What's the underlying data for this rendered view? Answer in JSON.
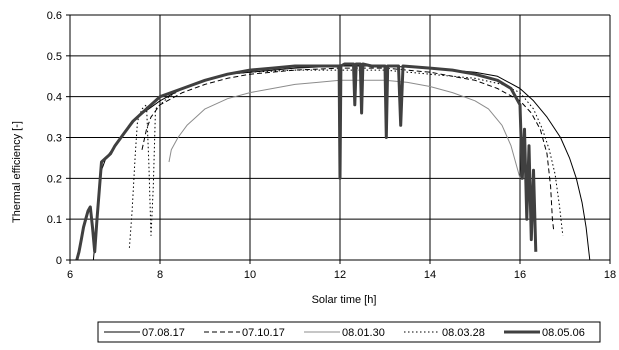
{
  "chart_data": {
    "type": "line",
    "title": "",
    "xlabel": "Solar time [h]",
    "ylabel": "Thermal efficiency [-]",
    "xlim": [
      6,
      18
    ],
    "ylim": [
      0,
      0.6
    ],
    "xticks": [
      6,
      8,
      10,
      12,
      14,
      16,
      18
    ],
    "yticks": [
      0,
      0.1,
      0.2,
      0.3,
      0.4,
      0.5,
      0.6
    ],
    "grid": true,
    "legend_position": "bottom",
    "series": [
      {
        "name": "07.08.17",
        "color": "#000000",
        "dash": "solid",
        "points": [
          [
            6.52,
            0
          ],
          [
            6.56,
            0.05
          ],
          [
            6.6,
            0.1
          ],
          [
            6.7,
            0.22
          ],
          [
            6.8,
            0.25
          ],
          [
            7.0,
            0.28
          ],
          [
            7.2,
            0.31
          ],
          [
            7.5,
            0.35
          ],
          [
            8.0,
            0.39
          ],
          [
            8.5,
            0.42
          ],
          [
            9.0,
            0.44
          ],
          [
            9.5,
            0.455
          ],
          [
            10.0,
            0.46
          ],
          [
            11.0,
            0.47
          ],
          [
            12.0,
            0.475
          ],
          [
            13.0,
            0.475
          ],
          [
            14.0,
            0.47
          ],
          [
            15.0,
            0.46
          ],
          [
            15.5,
            0.45
          ],
          [
            16.0,
            0.42
          ],
          [
            16.3,
            0.39
          ],
          [
            16.6,
            0.35
          ],
          [
            16.9,
            0.3
          ],
          [
            17.1,
            0.25
          ],
          [
            17.25,
            0.2
          ],
          [
            17.38,
            0.14
          ],
          [
            17.47,
            0.08
          ],
          [
            17.52,
            0.03
          ],
          [
            17.55,
            0
          ]
        ]
      },
      {
        "name": "07.10.17",
        "color": "#000000",
        "dash": "dashed",
        "points": [
          [
            7.6,
            0.27
          ],
          [
            7.7,
            0.32
          ],
          [
            7.8,
            0.35
          ],
          [
            8.0,
            0.38
          ],
          [
            8.5,
            0.41
          ],
          [
            9.0,
            0.43
          ],
          [
            9.5,
            0.445
          ],
          [
            10.0,
            0.455
          ],
          [
            11.0,
            0.465
          ],
          [
            12.0,
            0.47
          ],
          [
            13.0,
            0.47
          ],
          [
            14.0,
            0.46
          ],
          [
            14.5,
            0.45
          ],
          [
            15.0,
            0.44
          ],
          [
            15.5,
            0.42
          ],
          [
            16.0,
            0.39
          ],
          [
            16.25,
            0.36
          ],
          [
            16.45,
            0.32
          ],
          [
            16.6,
            0.26
          ],
          [
            16.68,
            0.18
          ],
          [
            16.72,
            0.1
          ],
          [
            16.75,
            0.07
          ]
        ]
      },
      {
        "name": "08.01.30",
        "color": "#8c8c8c",
        "dash": "solid",
        "points": [
          [
            8.2,
            0.24
          ],
          [
            8.25,
            0.27
          ],
          [
            8.4,
            0.3
          ],
          [
            8.6,
            0.33
          ],
          [
            8.8,
            0.35
          ],
          [
            9.0,
            0.37
          ],
          [
            9.5,
            0.395
          ],
          [
            10.0,
            0.41
          ],
          [
            10.5,
            0.42
          ],
          [
            11.0,
            0.43
          ],
          [
            11.5,
            0.435
          ],
          [
            12.0,
            0.44
          ],
          [
            12.5,
            0.44
          ],
          [
            13.0,
            0.44
          ],
          [
            13.5,
            0.435
          ],
          [
            14.0,
            0.425
          ],
          [
            14.5,
            0.41
          ],
          [
            15.0,
            0.39
          ],
          [
            15.3,
            0.37
          ],
          [
            15.6,
            0.33
          ],
          [
            15.8,
            0.28
          ],
          [
            15.95,
            0.22
          ],
          [
            16.0,
            0.2
          ]
        ]
      },
      {
        "name": "08.03.28",
        "color": "#000000",
        "dash": "dotted",
        "points": [
          [
            7.32,
            0.03
          ],
          [
            7.38,
            0.12
          ],
          [
            7.45,
            0.26
          ],
          [
            7.5,
            0.34
          ],
          [
            7.6,
            0.37
          ],
          [
            7.7,
            0.38
          ],
          [
            7.75,
            0.24
          ],
          [
            7.8,
            0.06
          ],
          [
            7.85,
            0.18
          ],
          [
            7.9,
            0.37
          ],
          [
            8.2,
            0.4
          ],
          [
            8.5,
            0.42
          ],
          [
            9.0,
            0.44
          ],
          [
            9.5,
            0.455
          ],
          [
            10.0,
            0.46
          ],
          [
            11.0,
            0.465
          ],
          [
            12.0,
            0.465
          ],
          [
            13.0,
            0.465
          ],
          [
            14.0,
            0.455
          ],
          [
            15.0,
            0.445
          ],
          [
            15.6,
            0.43
          ],
          [
            16.0,
            0.41
          ],
          [
            16.3,
            0.37
          ],
          [
            16.5,
            0.32
          ],
          [
            16.65,
            0.27
          ],
          [
            16.78,
            0.21
          ],
          [
            16.88,
            0.13
          ],
          [
            16.95,
            0.06
          ]
        ]
      },
      {
        "name": "08.05.06",
        "color": "#404040",
        "dash": "bold",
        "points": [
          [
            6.15,
            0
          ],
          [
            6.2,
            0.02
          ],
          [
            6.25,
            0.05
          ],
          [
            6.3,
            0.08
          ],
          [
            6.35,
            0.1
          ],
          [
            6.4,
            0.12
          ],
          [
            6.45,
            0.13
          ],
          [
            6.5,
            0.08
          ],
          [
            6.55,
            0.02
          ],
          [
            6.6,
            0.1
          ],
          [
            6.7,
            0.24
          ],
          [
            6.8,
            0.25
          ],
          [
            6.9,
            0.26
          ],
          [
            7.0,
            0.28
          ],
          [
            7.2,
            0.31
          ],
          [
            7.4,
            0.34
          ],
          [
            7.6,
            0.36
          ],
          [
            7.8,
            0.38
          ],
          [
            8.0,
            0.4
          ],
          [
            8.5,
            0.42
          ],
          [
            9.0,
            0.44
          ],
          [
            9.5,
            0.455
          ],
          [
            10.0,
            0.465
          ],
          [
            10.5,
            0.47
          ],
          [
            11.0,
            0.475
          ],
          [
            11.5,
            0.475
          ],
          [
            11.98,
            0.475
          ],
          [
            12.0,
            0.2
          ],
          [
            12.02,
            0.475
          ],
          [
            12.1,
            0.48
          ],
          [
            12.3,
            0.48
          ],
          [
            12.33,
            0.38
          ],
          [
            12.36,
            0.48
          ],
          [
            12.45,
            0.48
          ],
          [
            12.48,
            0.36
          ],
          [
            12.51,
            0.48
          ],
          [
            12.7,
            0.475
          ],
          [
            13.0,
            0.475
          ],
          [
            13.03,
            0.3
          ],
          [
            13.06,
            0.475
          ],
          [
            13.3,
            0.475
          ],
          [
            13.35,
            0.33
          ],
          [
            13.4,
            0.475
          ],
          [
            14.0,
            0.47
          ],
          [
            14.5,
            0.465
          ],
          [
            15.0,
            0.455
          ],
          [
            15.5,
            0.44
          ],
          [
            15.8,
            0.42
          ],
          [
            16.0,
            0.38
          ],
          [
            16.05,
            0.2
          ],
          [
            16.1,
            0.32
          ],
          [
            16.15,
            0.1
          ],
          [
            16.2,
            0.28
          ],
          [
            16.25,
            0.05
          ],
          [
            16.3,
            0.22
          ],
          [
            16.35,
            0.02
          ]
        ]
      }
    ]
  }
}
